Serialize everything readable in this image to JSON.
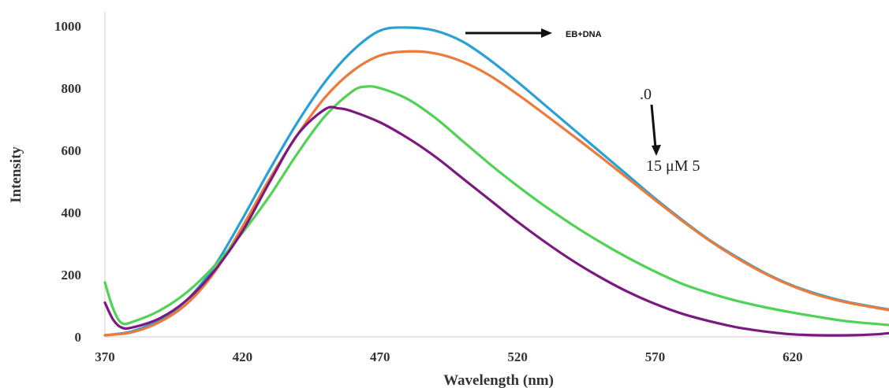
{
  "chart_data": {
    "type": "line",
    "title": "",
    "xlabel": "Wavelength (nm)",
    "ylabel": "Intensity",
    "xlim": [
      370,
      655
    ],
    "ylim": [
      0,
      1000
    ],
    "x_ticks": [
      "370",
      "420",
      "470",
      "520",
      "570",
      "620"
    ],
    "y_ticks": [
      "0",
      "200",
      "400",
      "600",
      "800",
      "1000"
    ],
    "grid": false,
    "legend": "none",
    "series": [
      {
        "color": "#2aa1d4",
        "points": [
          [
            370,
            5
          ],
          [
            380,
            18
          ],
          [
            390,
            55
          ],
          [
            400,
            120
          ],
          [
            410,
            230
          ],
          [
            420,
            380
          ],
          [
            430,
            540
          ],
          [
            440,
            690
          ],
          [
            450,
            820
          ],
          [
            460,
            920
          ],
          [
            470,
            985
          ],
          [
            480,
            995
          ],
          [
            490,
            985
          ],
          [
            500,
            950
          ],
          [
            510,
            890
          ],
          [
            520,
            820
          ],
          [
            530,
            745
          ],
          [
            540,
            670
          ],
          [
            550,
            595
          ],
          [
            560,
            520
          ],
          [
            570,
            445
          ],
          [
            580,
            375
          ],
          [
            590,
            310
          ],
          [
            600,
            255
          ],
          [
            610,
            205
          ],
          [
            620,
            165
          ],
          [
            630,
            135
          ],
          [
            640,
            112
          ],
          [
            655,
            88
          ]
        ]
      },
      {
        "color": "#ec7a3c",
        "points": [
          [
            370,
            5
          ],
          [
            380,
            15
          ],
          [
            390,
            48
          ],
          [
            400,
            108
          ],
          [
            410,
            210
          ],
          [
            420,
            355
          ],
          [
            430,
            510
          ],
          [
            440,
            650
          ],
          [
            450,
            770
          ],
          [
            460,
            855
          ],
          [
            470,
            905
          ],
          [
            480,
            918
          ],
          [
            490,
            912
          ],
          [
            500,
            885
          ],
          [
            510,
            840
          ],
          [
            520,
            780
          ],
          [
            530,
            715
          ],
          [
            540,
            648
          ],
          [
            550,
            580
          ],
          [
            560,
            510
          ],
          [
            570,
            440
          ],
          [
            580,
            372
          ],
          [
            590,
            308
          ],
          [
            600,
            252
          ],
          [
            610,
            203
          ],
          [
            620,
            163
          ],
          [
            630,
            132
          ],
          [
            640,
            110
          ],
          [
            655,
            86
          ]
        ]
      },
      {
        "color": "#4fd255",
        "points": [
          [
            370,
            175
          ],
          [
            373,
            90
          ],
          [
            376,
            45
          ],
          [
            380,
            48
          ],
          [
            390,
            85
          ],
          [
            400,
            145
          ],
          [
            410,
            230
          ],
          [
            420,
            335
          ],
          [
            430,
            455
          ],
          [
            440,
            590
          ],
          [
            450,
            710
          ],
          [
            460,
            790
          ],
          [
            465,
            805
          ],
          [
            470,
            800
          ],
          [
            480,
            765
          ],
          [
            490,
            705
          ],
          [
            500,
            630
          ],
          [
            510,
            555
          ],
          [
            520,
            485
          ],
          [
            530,
            420
          ],
          [
            540,
            360
          ],
          [
            550,
            305
          ],
          [
            560,
            255
          ],
          [
            570,
            210
          ],
          [
            580,
            170
          ],
          [
            590,
            140
          ],
          [
            600,
            115
          ],
          [
            610,
            95
          ],
          [
            620,
            78
          ],
          [
            630,
            63
          ],
          [
            640,
            50
          ],
          [
            655,
            38
          ]
        ]
      },
      {
        "color": "#7a1a7e",
        "points": [
          [
            370,
            110
          ],
          [
            373,
            55
          ],
          [
            376,
            30
          ],
          [
            380,
            30
          ],
          [
            390,
            60
          ],
          [
            400,
            120
          ],
          [
            410,
            215
          ],
          [
            420,
            340
          ],
          [
            430,
            500
          ],
          [
            440,
            650
          ],
          [
            450,
            732
          ],
          [
            455,
            735
          ],
          [
            460,
            725
          ],
          [
            470,
            690
          ],
          [
            480,
            640
          ],
          [
            490,
            580
          ],
          [
            500,
            510
          ],
          [
            510,
            440
          ],
          [
            520,
            370
          ],
          [
            530,
            305
          ],
          [
            540,
            245
          ],
          [
            550,
            192
          ],
          [
            560,
            145
          ],
          [
            570,
            106
          ],
          [
            580,
            74
          ],
          [
            590,
            50
          ],
          [
            600,
            30
          ],
          [
            610,
            17
          ],
          [
            620,
            8
          ],
          [
            630,
            5
          ],
          [
            640,
            5
          ],
          [
            650,
            8
          ],
          [
            655,
            12
          ]
        ]
      }
    ],
    "annotations": [
      {
        "text": "EB+DNA"
      },
      {
        "text": ".0"
      },
      {
        "text": "15 μM 5"
      }
    ]
  }
}
